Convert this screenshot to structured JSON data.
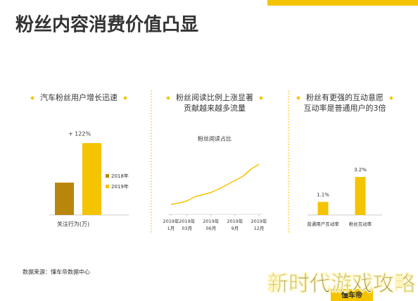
{
  "title": "粉丝内容消费价值凸显",
  "source": "数据来源：懂车帝数据中心",
  "logo": "懂车帝",
  "watermark": "新时代游戏攻略",
  "chart_data": [
    {
      "type": "bar",
      "title": [
        "汽车粉丝用户增长迅速"
      ],
      "categories": [
        "关注行为(万)"
      ],
      "series": [
        {
          "name": "2018年",
          "color": "#b8860b",
          "values": [
            100
          ]
        },
        {
          "name": "2019年",
          "color": "#f5c400",
          "values": [
            222
          ]
        }
      ],
      "annotation": "+ 122%"
    },
    {
      "type": "line",
      "title": [
        "粉丝阅读比例上涨显著",
        "贡献越来越多流量"
      ],
      "subtitle": "粉丝阅读占比",
      "x": [
        1,
        2,
        3,
        4,
        5,
        6,
        7,
        8,
        9,
        10,
        11,
        12
      ],
      "values": [
        10,
        12,
        15,
        21,
        24,
        27,
        32,
        38,
        44,
        50,
        60,
        67
      ],
      "color": "#f5c400",
      "xlim": [
        1,
        12
      ],
      "xticks": [
        {
          "value": 1,
          "label": "2019年\n1月"
        },
        {
          "value": 3,
          "label": "2019年\n03月"
        },
        {
          "value": 6,
          "label": "2019年\n06月"
        },
        {
          "value": 9,
          "label": "2019年\n9月"
        },
        {
          "value": 12,
          "label": "2019年\n12月"
        }
      ]
    },
    {
      "type": "bar",
      "title": [
        "粉丝有更强的互动意愿",
        "互动率是普通用户的3倍"
      ],
      "categories": [
        "普通用户互动率",
        "粉丝互动率"
      ],
      "values": [
        1.1,
        3.2
      ],
      "value_labels": [
        "1.1%",
        "3.2%"
      ],
      "color": "#f5c400"
    }
  ]
}
